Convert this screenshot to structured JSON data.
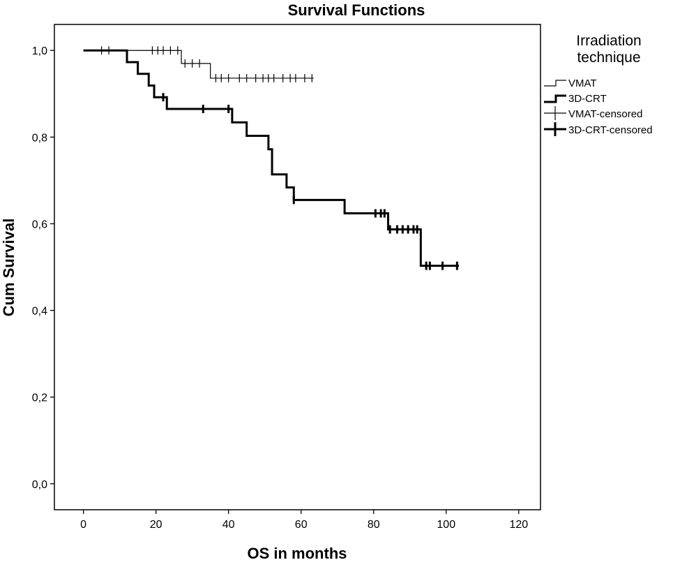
{
  "chart_data": {
    "type": "line",
    "subtype": "kaplan-meier",
    "title": "Survival Functions",
    "xlabel": "OS in months",
    "ylabel": "Cum Survival",
    "xlim": [
      -8,
      126
    ],
    "ylim": [
      -0.06,
      1.06
    ],
    "xticks": [
      0,
      20,
      40,
      60,
      80,
      100,
      120
    ],
    "xtick_labels": [
      "0",
      "20",
      "40",
      "60",
      "80",
      "100",
      "120"
    ],
    "yticks": [
      0.0,
      0.2,
      0.4,
      0.6,
      0.8,
      1.0
    ],
    "ytick_labels": [
      "0,0",
      "0,2",
      "0,4",
      "0,6",
      "0,8",
      "1,0"
    ],
    "legend": {
      "title_line1": "Irradiation",
      "title_line2": "technique",
      "position": "right",
      "entries": [
        "VMAT",
        "3D-CRT",
        "VMAT-censored",
        "3D-CRT-censored"
      ]
    },
    "series": [
      {
        "name": "VMAT",
        "style": "thin",
        "color": "#000000",
        "steps": [
          [
            0,
            1.0
          ],
          [
            27,
            0.97
          ],
          [
            35,
            0.936
          ],
          [
            63.5,
            0.936
          ]
        ],
        "censored": [
          {
            "x": 5,
            "y": 1.0
          },
          {
            "x": 7,
            "y": 1.0
          },
          {
            "x": 19,
            "y": 1.0
          },
          {
            "x": 20.5,
            "y": 1.0
          },
          {
            "x": 22,
            "y": 1.0
          },
          {
            "x": 24,
            "y": 1.0
          },
          {
            "x": 26,
            "y": 1.0
          },
          {
            "x": 28,
            "y": 0.97
          },
          {
            "x": 30,
            "y": 0.97
          },
          {
            "x": 32,
            "y": 0.97
          },
          {
            "x": 36.5,
            "y": 0.936
          },
          {
            "x": 38,
            "y": 0.936
          },
          {
            "x": 40,
            "y": 0.936
          },
          {
            "x": 43,
            "y": 0.936
          },
          {
            "x": 45,
            "y": 0.936
          },
          {
            "x": 47.5,
            "y": 0.936
          },
          {
            "x": 49.5,
            "y": 0.936
          },
          {
            "x": 51,
            "y": 0.936
          },
          {
            "x": 52.5,
            "y": 0.936
          },
          {
            "x": 55,
            "y": 0.936
          },
          {
            "x": 57,
            "y": 0.936
          },
          {
            "x": 58.5,
            "y": 0.936
          },
          {
            "x": 61,
            "y": 0.936
          },
          {
            "x": 63,
            "y": 0.936
          }
        ]
      },
      {
        "name": "3D-CRT",
        "style": "thick",
        "color": "#000000",
        "steps": [
          [
            0,
            1.0
          ],
          [
            12,
            0.973
          ],
          [
            15,
            0.946
          ],
          [
            18,
            0.919
          ],
          [
            19.5,
            0.892
          ],
          [
            23,
            0.865
          ],
          [
            41,
            0.834
          ],
          [
            45,
            0.803
          ],
          [
            51,
            0.772
          ],
          [
            52,
            0.714
          ],
          [
            56,
            0.684
          ],
          [
            58,
            0.655
          ],
          [
            72,
            0.624
          ],
          [
            84,
            0.587
          ],
          [
            93,
            0.503
          ],
          [
            103.5,
            0.503
          ]
        ],
        "censored": [
          {
            "x": 22,
            "y": 0.892
          },
          {
            "x": 33,
            "y": 0.865
          },
          {
            "x": 40,
            "y": 0.865
          },
          {
            "x": 58,
            "y": 0.655
          },
          {
            "x": 80.5,
            "y": 0.624
          },
          {
            "x": 82,
            "y": 0.624
          },
          {
            "x": 83,
            "y": 0.624
          },
          {
            "x": 84.5,
            "y": 0.587
          },
          {
            "x": 86.5,
            "y": 0.587
          },
          {
            "x": 88,
            "y": 0.587
          },
          {
            "x": 89.5,
            "y": 0.587
          },
          {
            "x": 91,
            "y": 0.587
          },
          {
            "x": 92,
            "y": 0.587
          },
          {
            "x": 94.5,
            "y": 0.503
          },
          {
            "x": 95.5,
            "y": 0.503
          },
          {
            "x": 99,
            "y": 0.503
          },
          {
            "x": 103,
            "y": 0.503
          }
        ]
      }
    ]
  }
}
